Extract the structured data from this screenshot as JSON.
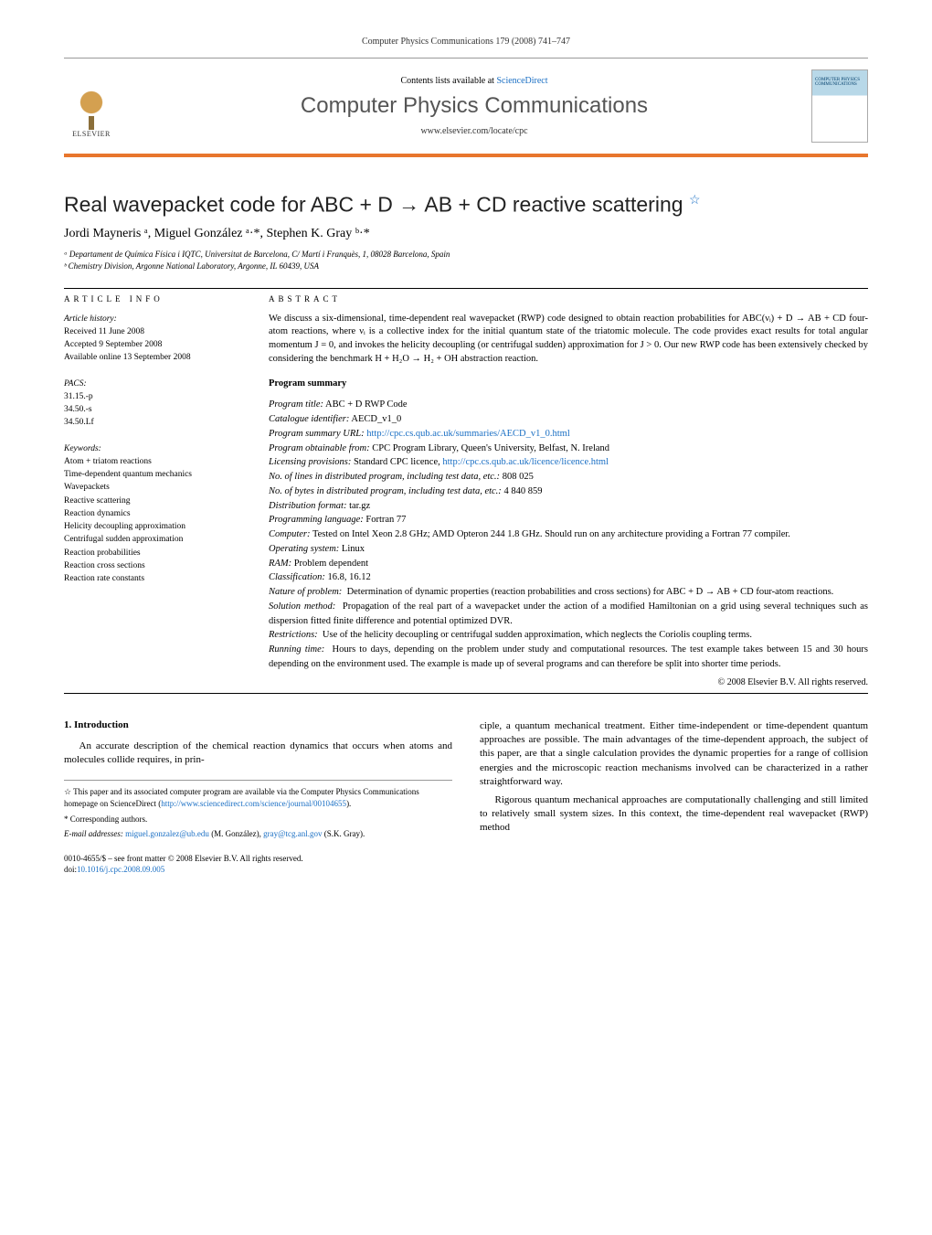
{
  "page_header": "Computer Physics Communications 179 (2008) 741–747",
  "banner": {
    "contents_line_prefix": "Contents lists available at ",
    "contents_link": "ScienceDirect",
    "journal_name": "Computer Physics Communications",
    "journal_url": "www.elsevier.com/locate/cpc",
    "publisher": "ELSEVIER",
    "cover_text": "COMPUTER PHYSICS COMMUNICATIONS"
  },
  "title": "Real wavepacket code for ABC + D → AB + CD reactive scattering",
  "title_star": "☆",
  "authors_line": "Jordi Mayneris ᵃ, Miguel González ᵃ·*, Stephen K. Gray ᵇ·*",
  "affiliations": {
    "a": "ᵃ Departament de Química Física i IQTC, Universitat de Barcelona, C/ Martí i Franquès, 1, 08028 Barcelona, Spain",
    "b": "ᵇ Chemistry Division, Argonne National Laboratory, Argonne, IL 60439, USA"
  },
  "info_head": "ARTICLE INFO",
  "abstract_head": "ABSTRACT",
  "history": {
    "label": "Article history:",
    "received": "Received 11 June 2008",
    "accepted": "Accepted 9 September 2008",
    "online": "Available online 13 September 2008"
  },
  "pacs": {
    "label": "PACS:",
    "l1": "31.15.-p",
    "l2": "34.50.-s",
    "l3": "34.50.Lf"
  },
  "keywords": {
    "label": "Keywords:",
    "k1": "Atom + triatom reactions",
    "k2": "Time-dependent quantum mechanics",
    "k3": "Wavepackets",
    "k4": "Reactive scattering",
    "k5": "Reaction dynamics",
    "k6": "Helicity decoupling approximation",
    "k7": "Centrifugal sudden approximation",
    "k8": "Reaction probabilities",
    "k9": "Reaction cross sections",
    "k10": "Reaction rate constants"
  },
  "abstract": "We discuss a six-dimensional, time-dependent real wavepacket (RWP) code designed to obtain reaction probabilities for ABC(νᵢ) + D → AB + CD four-atom reactions, where νᵢ is a collective index for the initial quantum state of the triatomic molecule. The code provides exact results for total angular momentum J = 0, and invokes the helicity decoupling (or centrifugal sudden) approximation for J > 0. Our new RWP code has been extensively checked by considering the benchmark H + H₂O → H₂ + OH abstraction reaction.",
  "program_summary_head": "Program summary",
  "ps": {
    "title_l": "Program title:",
    "title_v": "ABC + D RWP Code",
    "cat_l": "Catalogue identifier:",
    "cat_v": "AECD_v1_0",
    "url_l": "Program summary URL:",
    "url_v": "http://cpc.cs.qub.ac.uk/summaries/AECD_v1_0.html",
    "obt_l": "Program obtainable from:",
    "obt_v": "CPC Program Library, Queen's University, Belfast, N. Ireland",
    "lic_l": "Licensing provisions:",
    "lic_v1": "Standard CPC licence, ",
    "lic_v2": "http://cpc.cs.qub.ac.uk/licence/licence.html",
    "lines_l": "No. of lines in distributed program, including test data, etc.:",
    "lines_v": "808 025",
    "bytes_l": "No. of bytes in distributed program, including test data, etc.:",
    "bytes_v": "4 840 859",
    "dist_l": "Distribution format:",
    "dist_v": "tar.gz",
    "lang_l": "Programming language:",
    "lang_v": "Fortran 77",
    "comp_l": "Computer:",
    "comp_v": "Tested on Intel Xeon 2.8 GHz; AMD Opteron 244 1.8 GHz. Should run on any architecture providing a Fortran 77 compiler.",
    "os_l": "Operating system:",
    "os_v": "Linux",
    "ram_l": "RAM:",
    "ram_v": "Problem dependent",
    "class_l": "Classification:",
    "class_v": "16.8, 16.12",
    "nature_l": "Nature of problem:",
    "nature_v": "Determination of dynamic properties (reaction probabilities and cross sections) for ABC + D → AB + CD four-atom reactions.",
    "sol_l": "Solution method:",
    "sol_v": "Propagation of the real part of a wavepacket under the action of a modified Hamiltonian on a grid using several techniques such as dispersion fitted finite difference and potential optimized DVR.",
    "restr_l": "Restrictions:",
    "restr_v": "Use of the helicity decoupling or centrifugal sudden approximation, which neglects the Coriolis coupling terms.",
    "run_l": "Running time:",
    "run_v": "Hours to days, depending on the problem under study and computational resources. The test example takes between 15 and 30 hours depending on the environment used. The example is made up of several programs and can therefore be split into shorter time periods."
  },
  "copyright": "© 2008 Elsevier B.V. All rights reserved.",
  "section1_head": "1. Introduction",
  "body": {
    "p1": "An accurate description of the chemical reaction dynamics that occurs when atoms and molecules collide requires, in prin-",
    "p2": "ciple, a quantum mechanical treatment. Either time-independent or time-dependent quantum approaches are possible. The main advantages of the time-dependent approach, the subject of this paper, are that a single calculation provides the dynamic properties for a range of collision energies and the microscopic reaction mechanisms involved can be characterized in a rather straightforward way.",
    "p3": "Rigorous quantum mechanical approaches are computationally challenging and still limited to relatively small system sizes. In this context, the time-dependent real wavepacket (RWP) method"
  },
  "footnotes": {
    "star_pre": "☆ This paper and its associated computer program are available via the Computer Physics Communications homepage on ScienceDirect (",
    "star_link": "http://www.sciencedirect.com/science/journal/00104655",
    "star_post": ").",
    "corr": "* Corresponding authors.",
    "email_l": "E-mail addresses: ",
    "email1": "miguel.gonzalez@ub.edu",
    "email1_who": " (M. González), ",
    "email2": "gray@tcg.anl.gov",
    "email2_who": " (S.K. Gray)."
  },
  "footer": {
    "line1": "0010-4655/$ – see front matter © 2008 Elsevier B.V. All rights reserved.",
    "doi_l": "doi:",
    "doi": "10.1016/j.cpc.2008.09.005"
  },
  "colors": {
    "accent": "#e8762d",
    "link": "#1a6fc4"
  }
}
